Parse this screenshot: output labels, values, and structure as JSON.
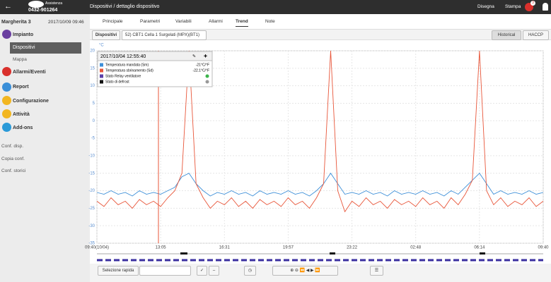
{
  "header": {
    "logo_text": "Assistenza",
    "phone": "0432-901264",
    "breadcrumb": "Dispositivi / dettaglio dispositivo",
    "draw": "Disegna",
    "print": "Stampa",
    "alarm_count": 3
  },
  "sidebar": {
    "site": "Margherita 3",
    "datetime": "2017/10/09 09:46",
    "menu": [
      "Impianto",
      "Dispositivi",
      "Mappa",
      "Allarmi/Eventi",
      "Report",
      "Configurazione",
      "Attività",
      "Add-ons"
    ],
    "links": [
      "Conf. disp.",
      "Copia conf.",
      "Conf. storici"
    ]
  },
  "tabs": [
    "Principale",
    "Parametri",
    "Variabili",
    "Allarmi",
    "Trend",
    "Note"
  ],
  "device_bar": {
    "label": "Dispositivi",
    "device": "52) CBT1 Cella 1 Surgelati (MPX)(BT1)",
    "historical": "Historical",
    "haccp": "HACCP"
  },
  "trend": {
    "type": "line",
    "unit": "°C",
    "ylim": [
      -35,
      20
    ],
    "yticks": [
      20,
      15,
      10,
      5,
      0,
      -5,
      -10,
      -15,
      -20,
      -25,
      -30,
      -35
    ],
    "xticks": [
      "09:40(10/04)",
      "13:05",
      "16:31",
      "19:57",
      "23:22",
      "02:48",
      "06:14",
      "09:40"
    ],
    "series": [
      {
        "name": "Temperatura mandata (Sm)",
        "color": "#3d8fd8",
        "values": [
          -20.5,
          -21,
          -20,
          -21,
          -20.5,
          -21.5,
          -20,
          -21,
          -20.5,
          -21,
          -20,
          -19,
          -16,
          -15,
          -18,
          -20,
          -21.5,
          -20.5,
          -21,
          -20,
          -21,
          -20.5,
          -21.5,
          -20,
          -21,
          -20.5,
          -21,
          -20,
          -21,
          -20.5,
          -21.5,
          -20,
          -18,
          -15,
          -18,
          -21,
          -20.5,
          -21,
          -20,
          -21,
          -20.5,
          -21.5,
          -20,
          -21,
          -20.5,
          -21,
          -20,
          -21,
          -20.5,
          -21.5,
          -20,
          -21,
          -19,
          -17,
          -15,
          -18,
          -21,
          -20,
          -21,
          -20.5,
          -21,
          -20,
          -21,
          -20.5
        ]
      },
      {
        "name": "Temperatura sbrinamento (Sd)",
        "color": "#e8563a",
        "values": [
          -23,
          -24.5,
          -22,
          -24,
          -23,
          -25,
          -22.5,
          -24,
          -23,
          -24.5,
          -22,
          -20,
          -15,
          20,
          -18,
          -22,
          -25,
          -23,
          -24,
          -22,
          -24.5,
          -23,
          -25,
          -22.5,
          -24,
          -23,
          -24.5,
          -22,
          -24,
          -23,
          -25,
          -22,
          -18,
          20,
          -20,
          -26,
          -23,
          -24.5,
          -22,
          -24,
          -23,
          -25,
          -22.5,
          -24,
          -23,
          -24.5,
          -22,
          -24,
          -23,
          -25,
          -22,
          -24,
          -21,
          -17,
          20,
          -20,
          -24,
          -22,
          -24.5,
          -23,
          -24,
          -22,
          -24.5,
          -23
        ]
      }
    ],
    "tooltip": {
      "time": "2017/10/04 12:55:40",
      "rows": [
        {
          "name": "Temperatura mandata (Sm)",
          "value": "-21°C/°F",
          "color": "#3d8fd8"
        },
        {
          "name": "Temperatura sbrinamento (Sd)",
          "value": "-22.1°C/°F",
          "color": "#e8563a"
        },
        {
          "name": "Stato Relay ventilatore",
          "color": "#5b3fa8",
          "status": "#3cb44b"
        },
        {
          "name": "Stato di defrost",
          "color": "#111111",
          "status": "#999999"
        }
      ]
    }
  },
  "toolbar": {
    "quick_select": "Selezione rapida"
  }
}
